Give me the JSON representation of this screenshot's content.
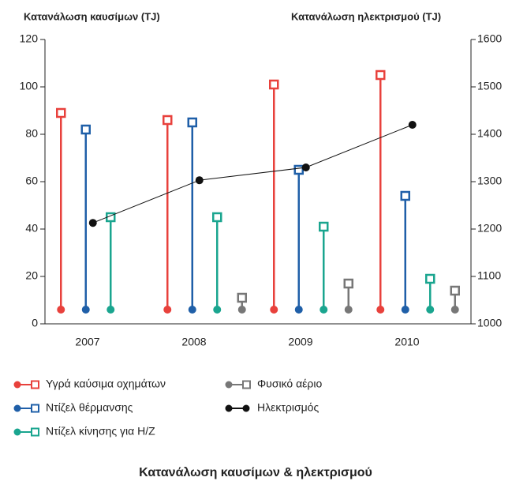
{
  "chart_data": {
    "type": "lollipop",
    "title": "Κατανάλωση καυσίμων & ηλεκτρισμού",
    "y_label": "Κατανάλωση καυσίμων (TJ)",
    "y2_label": "Κατανάλωση ηλεκτρισμού (TJ)",
    "categories": [
      "2007",
      "2008",
      "2009",
      "2010"
    ],
    "ylim": [
      0,
      120
    ],
    "yticks": [
      0,
      20,
      40,
      60,
      80,
      100,
      120
    ],
    "y2lim": [
      1000,
      1600
    ],
    "y2ticks": [
      1000,
      1100,
      1200,
      1300,
      1400,
      1500,
      1600
    ],
    "series": [
      {
        "name": "Υγρά καύσιμα οχημάτων",
        "color": "#e8413c",
        "values": [
          89,
          86,
          101,
          105
        ]
      },
      {
        "name": "Ντίζελ θέρμανσης",
        "color": "#1f5fa8",
        "values": [
          82,
          85,
          65,
          54
        ]
      },
      {
        "name": "Ντίζελ κίνησης για Η/Ζ",
        "color": "#1aa58f",
        "values": [
          45,
          45,
          41,
          19
        ]
      },
      {
        "name": "Φυσικό αέριο",
        "color": "#777777",
        "values": [
          null,
          11,
          17,
          14
        ]
      },
      {
        "name": "Ηλεκτρισμός",
        "color": "#111111",
        "axis": "y2",
        "values": [
          1213,
          1303,
          1330,
          1420
        ]
      }
    ]
  }
}
